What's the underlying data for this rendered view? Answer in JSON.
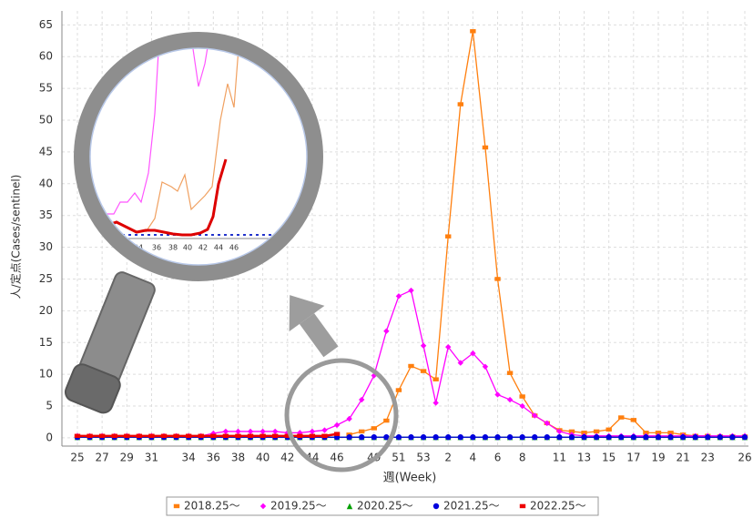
{
  "chart_data": {
    "type": "line",
    "y_label": "人/定点(Cases/sentinel)",
    "x_label": "週(Week)",
    "categories": [
      "25",
      null,
      "27",
      null,
      "29",
      null,
      "31",
      null,
      null,
      "34",
      null,
      "36",
      null,
      "38",
      null,
      "40",
      null,
      "42",
      null,
      "44",
      null,
      "46",
      null,
      null,
      "49",
      null,
      "51",
      null,
      "53",
      null,
      "2",
      null,
      "4",
      null,
      "6",
      null,
      "8",
      null,
      null,
      "11",
      null,
      "13",
      null,
      "15",
      null,
      "17",
      null,
      "19",
      null,
      "21",
      null,
      "23",
      null,
      null,
      "26"
    ],
    "series": [
      {
        "name": "2018.25～",
        "color": "#ff7f0e",
        "marker": "square",
        "values": [
          null,
          null,
          null,
          null,
          null,
          null,
          null,
          null,
          null,
          null,
          null,
          null,
          null,
          null,
          null,
          null,
          null,
          null,
          null,
          null,
          null,
          null,
          0.5,
          1.0,
          1.5,
          2.7,
          7.5,
          11.3,
          10.5,
          9.2,
          31.7,
          52.5,
          64,
          45.7,
          25,
          10.2,
          6.5,
          3.5,
          2.3,
          1.2,
          1.0,
          0.8,
          1.0,
          1.3,
          3.2,
          2.8,
          0.8,
          0.8,
          0.8,
          0.5,
          0.3,
          0.3,
          0.2,
          0.2,
          0.2
        ]
      },
      {
        "name": "2019.25～",
        "color": "#ff00ff",
        "marker": "diamond",
        "values": [
          0.3,
          0.3,
          0.3,
          0.3,
          0.3,
          0.3,
          0.3,
          0.3,
          0.3,
          0.3,
          0.3,
          0.7,
          1.0,
          1.0,
          1.0,
          1.0,
          1.0,
          0.8,
          0.8,
          1.0,
          1.2,
          2.0,
          3.0,
          6.0,
          9.8,
          16.8,
          22.3,
          23.2,
          14.5,
          5.5,
          14.3,
          11.8,
          13.3,
          11.2,
          6.8,
          6.0,
          5.0,
          3.5,
          2.3,
          1.0,
          0.5,
          0.3,
          0.3,
          0.3,
          0.3,
          0.3,
          0.3,
          0.3,
          0.3,
          0.3,
          0.3,
          0.3,
          0.3,
          0.3,
          0.3
        ]
      },
      {
        "name": "2020.25～",
        "color": "#00a000",
        "marker": "triangle",
        "values": [
          0.1,
          0.1,
          0.1,
          0.1,
          0.1,
          0.1,
          0.1,
          0.1,
          0.1,
          0.1,
          0.1,
          0.1,
          0.1,
          0.1,
          0.1,
          0.1,
          0.1,
          0.1,
          0.1,
          0.1,
          0.1,
          0.1,
          0.1,
          0.1,
          0.1,
          0.1,
          0.1,
          0.1,
          0.1,
          0.1,
          0.1,
          0.1,
          0.1,
          0.1,
          0.1,
          0.1,
          0.1,
          0.1,
          0.1,
          0.1,
          0.1,
          0.1,
          0.1,
          0.1,
          0.1,
          0.1,
          0.1,
          0.1,
          0.1,
          0.1,
          0.1,
          0.1,
          0.1,
          0.1,
          0.1
        ]
      },
      {
        "name": "2021.25～",
        "color": "#0000dd",
        "marker": "circle",
        "values": [
          0.1,
          0.1,
          0.1,
          0.1,
          0.1,
          0.1,
          0.1,
          0.1,
          0.1,
          0.1,
          0.1,
          0.1,
          0.1,
          0.1,
          0.1,
          0.1,
          0.1,
          0.1,
          0.1,
          0.1,
          0.1,
          0.1,
          0.1,
          0.1,
          0.1,
          0.1,
          0.1,
          0.1,
          0.1,
          0.1,
          0.1,
          0.1,
          0.1,
          0.1,
          0.1,
          0.1,
          0.1,
          0.1,
          0.1,
          0.1,
          0.1,
          0.1,
          0.1,
          0.1,
          0.1,
          0.1,
          0.1,
          0.1,
          0.1,
          0.1,
          0.1,
          0.1,
          0.1,
          0.1,
          0.1
        ]
      },
      {
        "name": "2022.25～",
        "color": "#ee0000",
        "marker": "square",
        "width": 2.5,
        "values": [
          0.3,
          0.3,
          0.3,
          0.3,
          0.3,
          0.3,
          0.3,
          0.3,
          0.3,
          0.3,
          0.3,
          0.3,
          0.3,
          0.3,
          0.3,
          0.3,
          0.3,
          0.3,
          0.3,
          0.3,
          0.3,
          0.6,
          null,
          null,
          null,
          null,
          null,
          null,
          null,
          null,
          null,
          null,
          null,
          null,
          null,
          null,
          null,
          null,
          null,
          null,
          null,
          null,
          null,
          null,
          null,
          null,
          null,
          null,
          null,
          null,
          null,
          null,
          null,
          null,
          null
        ]
      }
    ],
    "ylim": [
      -1.3,
      67.2
    ],
    "yticks": [
      0,
      5,
      10,
      15,
      20,
      25,
      30,
      35,
      40,
      45,
      50,
      55,
      60,
      65
    ],
    "grid": true,
    "inset_xticks": [
      "34",
      "36",
      "38",
      "40",
      "42",
      "44",
      "46"
    ]
  }
}
